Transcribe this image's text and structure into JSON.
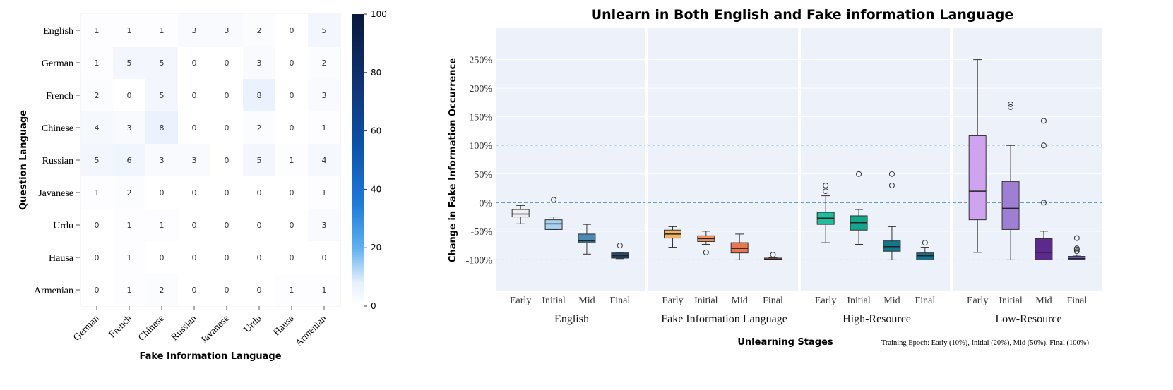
{
  "chart_data": [
    {
      "type": "heatmap",
      "xlabel": "Fake Information Language",
      "ylabel": "Question Language",
      "rows": [
        "English",
        "German",
        "French",
        "Chinese",
        "Russian",
        "Javanese",
        "Urdu",
        "Hausa",
        "Armenian"
      ],
      "cols": [
        "German",
        "French",
        "Chinese",
        "Russian",
        "Javanese",
        "Urdu",
        "Hausa",
        "Armenian"
      ],
      "values": [
        [
          1,
          1,
          1,
          3,
          3,
          2,
          0,
          5
        ],
        [
          1,
          5,
          5,
          0,
          0,
          3,
          0,
          2
        ],
        [
          2,
          0,
          5,
          0,
          0,
          8,
          0,
          3
        ],
        [
          4,
          3,
          8,
          0,
          0,
          2,
          0,
          1
        ],
        [
          5,
          6,
          3,
          3,
          0,
          5,
          1,
          4
        ],
        [
          1,
          2,
          0,
          0,
          0,
          0,
          0,
          1
        ],
        [
          0,
          1,
          1,
          0,
          0,
          0,
          0,
          3
        ],
        [
          0,
          1,
          0,
          0,
          0,
          0,
          0,
          0
        ],
        [
          0,
          1,
          2,
          0,
          0,
          0,
          1,
          1
        ]
      ],
      "colorbar": {
        "min": 0,
        "max": 100,
        "ticks": [
          0,
          20,
          40,
          60,
          80,
          100
        ]
      },
      "colors": {
        "low": "#ffffff",
        "high": "#08193b"
      }
    },
    {
      "type": "box",
      "title": "Unlearn in Both English and Fake information Language",
      "xlabel": "Unlearning Stages",
      "ylabel": "Change in Fake Information Occurrence",
      "note": "Training Epoch: Early (10%), Initial (20%), Mid (50%), Final (100%)",
      "ylim": [
        -155,
        305
      ],
      "yticks": [
        -100,
        -50,
        0,
        50,
        100,
        150,
        200,
        250
      ],
      "ytick_labels": [
        "-100%",
        "-50%",
        "0%",
        "50%",
        "100%",
        "150%",
        "200%",
        "250%"
      ],
      "reference_lines": [
        0,
        100,
        -100
      ],
      "stages": [
        "Early",
        "Initial",
        "Mid",
        "Final"
      ],
      "groups": [
        {
          "name": "English",
          "boxes": [
            {
              "stage": "Early",
              "color": "#f0f0f4",
              "whislo": -37,
              "q1": -25,
              "med": -20,
              "q3": -12,
              "whishi": -5,
              "fliers": []
            },
            {
              "stage": "Initial",
              "color": "#a9d2f1",
              "whislo": -47,
              "q1": -47,
              "med": -37,
              "q3": -30,
              "whishi": -25,
              "fliers": [
                5
              ]
            },
            {
              "stage": "Mid",
              "color": "#4a8ab3",
              "whislo": -90,
              "q1": -70,
              "med": -67,
              "q3": -55,
              "whishi": -38,
              "fliers": []
            },
            {
              "stage": "Final",
              "color": "#1f4d7a",
              "whislo": -98,
              "q1": -97,
              "med": -93,
              "q3": -88,
              "whishi": -87,
              "fliers": [
                -75
              ]
            }
          ]
        },
        {
          "name": "Fake Information Language",
          "boxes": [
            {
              "stage": "Early",
              "color": "#f3b45f",
              "whislo": -78,
              "q1": -62,
              "med": -55,
              "q3": -48,
              "whishi": -42,
              "fliers": []
            },
            {
              "stage": "Initial",
              "color": "#f0935b",
              "whislo": -73,
              "q1": -68,
              "med": -63,
              "q3": -58,
              "whishi": -50,
              "fliers": [
                -87
              ]
            },
            {
              "stage": "Mid",
              "color": "#e8764f",
              "whislo": -100,
              "q1": -88,
              "med": -80,
              "q3": -70,
              "whishi": -55,
              "fliers": []
            },
            {
              "stage": "Final",
              "color": "#d9683c",
              "whislo": -100,
              "q1": -100,
              "med": -99,
              "q3": -97,
              "whishi": -96,
              "fliers": [
                -91
              ]
            }
          ]
        },
        {
          "name": "High-Resource",
          "boxes": [
            {
              "stage": "Early",
              "color": "#1fbd9c",
              "whislo": -70,
              "q1": -38,
              "med": -27,
              "q3": -17,
              "whishi": 12,
              "fliers": [
                20,
                30
              ]
            },
            {
              "stage": "Initial",
              "color": "#14a58d",
              "whislo": -73,
              "q1": -48,
              "med": -35,
              "q3": -23,
              "whishi": -12,
              "fliers": [
                50
              ]
            },
            {
              "stage": "Mid",
              "color": "#12788c",
              "whislo": -100,
              "q1": -85,
              "med": -77,
              "q3": -67,
              "whishi": -42,
              "fliers": [
                30,
                50
              ]
            },
            {
              "stage": "Final",
              "color": "#16728f",
              "whislo": -100,
              "q1": -100,
              "med": -93,
              "q3": -88,
              "whishi": -78,
              "fliers": [
                -70
              ]
            }
          ]
        },
        {
          "name": "Low-Resource",
          "boxes": [
            {
              "stage": "Early",
              "color": "#cfa3f0",
              "whislo": -87,
              "q1": -30,
              "med": 20,
              "q3": 117,
              "whishi": 250,
              "fliers": []
            },
            {
              "stage": "Initial",
              "color": "#9e7fd3",
              "whislo": -100,
              "q1": -47,
              "med": -10,
              "q3": 37,
              "whishi": 100,
              "fliers": [
                167,
                172
              ]
            },
            {
              "stage": "Mid",
              "color": "#5b2a8c",
              "whislo": -100,
              "q1": -100,
              "med": -87,
              "q3": -63,
              "whishi": -50,
              "fliers": [
                0,
                100,
                143
              ]
            },
            {
              "stage": "Final",
              "color": "#6a5ab0",
              "whislo": -100,
              "q1": -100,
              "med": -98,
              "q3": -94,
              "whishi": -92,
              "fliers": [
                -85,
                -82,
                -80,
                -62
              ]
            }
          ]
        }
      ]
    }
  ]
}
